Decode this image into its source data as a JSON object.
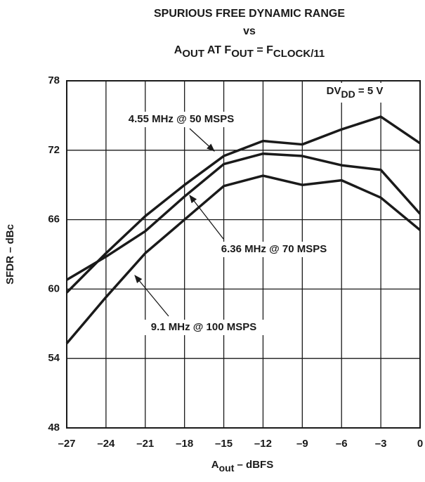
{
  "chart_data": {
    "type": "line",
    "title": [
      "SPURIOUS FREE DYNAMIC RANGE",
      "vs"
    ],
    "title_parts": [
      {
        "text": "A",
        "sub": false
      },
      {
        "text": "OUT",
        "sub": true
      },
      {
        "text": " AT F",
        "sub": false
      },
      {
        "text": "OUT",
        "sub": true
      },
      {
        "text": " = F",
        "sub": false
      },
      {
        "text": "CLOCK/11",
        "sub": true
      }
    ],
    "annotation_parts": [
      {
        "text": "DV",
        "sub": false
      },
      {
        "text": "DD",
        "sub": true
      },
      {
        "text": " = 5 V",
        "sub": false
      }
    ],
    "xlabel_parts": [
      {
        "text": "A",
        "sub": false
      },
      {
        "text": "out",
        "sub": true
      },
      {
        "text": " – dBFS",
        "sub": false
      }
    ],
    "ylabel": "SFDR – dBc",
    "x": [
      -27,
      -24,
      -21,
      -18,
      -15,
      -12,
      -9,
      -6,
      -3,
      0
    ],
    "series": [
      {
        "name": "4.55 MHz @ 50 MSPS",
        "color": "#1a1a1a",
        "values": [
          59.7,
          63.1,
          66.3,
          69.0,
          71.5,
          72.8,
          72.5,
          73.8,
          74.9,
          72.6
        ]
      },
      {
        "name": "6.36 MHz @ 70 MSPS",
        "color": "#1a1a1a",
        "values": [
          60.8,
          62.8,
          65.0,
          68.0,
          70.8,
          71.7,
          71.5,
          70.7,
          70.3,
          66.5
        ]
      },
      {
        "name": "9.1 MHz @ 100 MSPS",
        "color": "#1a1a1a",
        "values": [
          55.3,
          59.3,
          63.1,
          66.0,
          68.9,
          69.8,
          69.0,
          69.4,
          67.9,
          65.1
        ]
      }
    ],
    "xlim": [
      -27,
      0
    ],
    "xticks": [
      {
        "value": -27,
        "label": "–27"
      },
      {
        "value": -24,
        "label": "–24"
      },
      {
        "value": -21,
        "label": "–21"
      },
      {
        "value": -18,
        "label": "–18"
      },
      {
        "value": -15,
        "label": "–15"
      },
      {
        "value": -12,
        "label": "–12"
      },
      {
        "value": -9,
        "label": "–9"
      },
      {
        "value": -6,
        "label": "–6"
      },
      {
        "value": -3,
        "label": "–3"
      },
      0
    ],
    "ylim": [
      48,
      78
    ],
    "yticks": [
      48,
      54,
      60,
      66,
      72,
      78
    ],
    "grid": true
  }
}
